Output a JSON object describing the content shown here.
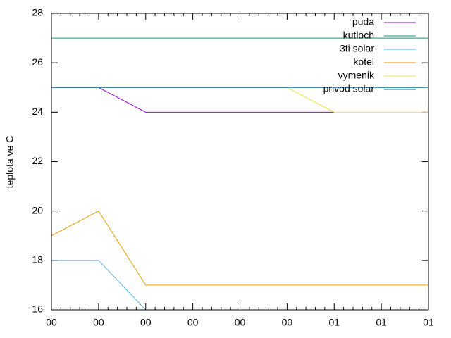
{
  "chart_data": {
    "type": "line",
    "y_label": "teplota ve C",
    "categories": [
      "00",
      "00",
      "00",
      "00",
      "00",
      "00",
      "01",
      "01",
      "01"
    ],
    "ylim": [
      16,
      28
    ],
    "yticks": [
      16,
      18,
      20,
      22,
      24,
      26,
      28
    ],
    "legend": "top-right",
    "series": [
      {
        "name": "puda",
        "color": "#9400d3",
        "values": [
          25,
          25,
          24,
          24,
          24,
          24,
          24,
          null,
          null
        ]
      },
      {
        "name": "kutloch",
        "color": "#009e73",
        "values": [
          27,
          27,
          27,
          27,
          27,
          27,
          27,
          27,
          27
        ]
      },
      {
        "name": "3ti solar",
        "color": "#56b4e9",
        "values": [
          18,
          18,
          16,
          null,
          null,
          null,
          null,
          null,
          null
        ]
      },
      {
        "name": "kotel",
        "color": "#e69f00",
        "values": [
          19,
          20,
          17,
          17,
          17,
          17,
          17,
          17,
          17
        ]
      },
      {
        "name": "vymenik",
        "color": "#f0e442",
        "values": [
          25,
          25,
          25,
          25,
          25,
          25,
          24,
          24,
          24
        ]
      },
      {
        "name": "privod solar",
        "color": "#0072b2",
        "values": [
          25,
          25,
          25,
          25,
          25,
          25,
          25,
          25,
          25
        ]
      }
    ]
  }
}
